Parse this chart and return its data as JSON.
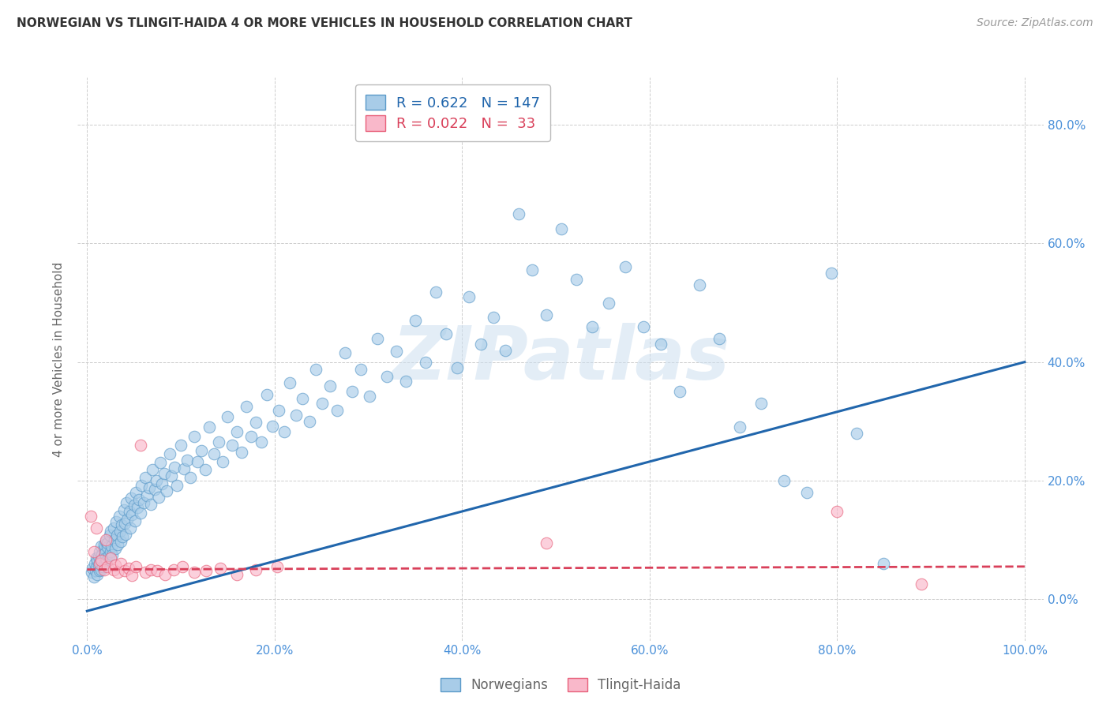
{
  "title": "NORWEGIAN VS TLINGIT-HAIDA 4 OR MORE VEHICLES IN HOUSEHOLD CORRELATION CHART",
  "source": "Source: ZipAtlas.com",
  "ylabel": "4 or more Vehicles in Household",
  "watermark": "ZIPatlas",
  "norwegian_R": 0.622,
  "norwegian_N": 147,
  "tlingit_R": 0.022,
  "tlingit_N": 33,
  "xlim": [
    -0.01,
    1.02
  ],
  "ylim": [
    -0.07,
    0.88
  ],
  "xticks": [
    0.0,
    0.2,
    0.4,
    0.6,
    0.8,
    1.0
  ],
  "yticks": [
    0.0,
    0.2,
    0.4,
    0.6,
    0.8
  ],
  "xticklabels": [
    "0.0%",
    "20.0%",
    "40.0%",
    "60.0%",
    "80.0%",
    "100.0%"
  ],
  "yticklabels_right": [
    "0.0%",
    "20.0%",
    "40.0%",
    "60.0%",
    "80.0%"
  ],
  "norwegian_color": "#a8cce8",
  "norwegian_edge": "#5b9ac9",
  "tlingit_color": "#f9b8ca",
  "tlingit_edge": "#e8607a",
  "trend_norwegian_color": "#2166ac",
  "trend_tlingit_color": "#d9405a",
  "legend_label_norwegian": "Norwegians",
  "legend_label_tlingit": "Tlingit-Haida",
  "title_color": "#333333",
  "source_color": "#999999",
  "axis_label_color": "#666666",
  "tick_color": "#4a90d9",
  "grid_color": "#c8c8c8",
  "nor_trend_x0": 0.0,
  "nor_trend_y0": -0.02,
  "nor_trend_x1": 1.0,
  "nor_trend_y1": 0.4,
  "tl_trend_x0": 0.0,
  "tl_trend_y0": 0.05,
  "tl_trend_x1": 1.0,
  "tl_trend_y1": 0.055,
  "norwegian_x": [
    0.005,
    0.006,
    0.007,
    0.008,
    0.009,
    0.01,
    0.01,
    0.011,
    0.011,
    0.012,
    0.012,
    0.013,
    0.013,
    0.014,
    0.015,
    0.015,
    0.016,
    0.016,
    0.017,
    0.018,
    0.018,
    0.019,
    0.019,
    0.02,
    0.02,
    0.021,
    0.022,
    0.022,
    0.023,
    0.024,
    0.025,
    0.025,
    0.026,
    0.027,
    0.028,
    0.029,
    0.03,
    0.031,
    0.032,
    0.033,
    0.034,
    0.035,
    0.036,
    0.037,
    0.038,
    0.039,
    0.04,
    0.041,
    0.042,
    0.043,
    0.045,
    0.046,
    0.047,
    0.048,
    0.05,
    0.051,
    0.052,
    0.054,
    0.055,
    0.057,
    0.058,
    0.06,
    0.062,
    0.064,
    0.066,
    0.068,
    0.07,
    0.072,
    0.074,
    0.076,
    0.078,
    0.08,
    0.082,
    0.085,
    0.088,
    0.09,
    0.093,
    0.096,
    0.1,
    0.103,
    0.107,
    0.11,
    0.114,
    0.118,
    0.122,
    0.126,
    0.13,
    0.135,
    0.14,
    0.145,
    0.15,
    0.155,
    0.16,
    0.165,
    0.17,
    0.175,
    0.18,
    0.186,
    0.192,
    0.198,
    0.204,
    0.21,
    0.216,
    0.223,
    0.23,
    0.237,
    0.244,
    0.251,
    0.259,
    0.267,
    0.275,
    0.283,
    0.292,
    0.301,
    0.31,
    0.32,
    0.33,
    0.34,
    0.35,
    0.361,
    0.372,
    0.383,
    0.395,
    0.407,
    0.42,
    0.433,
    0.446,
    0.46,
    0.475,
    0.49,
    0.506,
    0.522,
    0.539,
    0.556,
    0.574,
    0.593,
    0.612,
    0.632,
    0.653,
    0.674,
    0.696,
    0.719,
    0.743,
    0.768,
    0.794,
    0.821,
    0.849
  ],
  "norwegian_y": [
    0.045,
    0.052,
    0.038,
    0.06,
    0.048,
    0.055,
    0.07,
    0.042,
    0.065,
    0.058,
    0.072,
    0.048,
    0.08,
    0.063,
    0.05,
    0.09,
    0.068,
    0.075,
    0.055,
    0.085,
    0.092,
    0.06,
    0.078,
    0.07,
    0.098,
    0.065,
    0.088,
    0.095,
    0.073,
    0.108,
    0.08,
    0.115,
    0.09,
    0.075,
    0.12,
    0.1,
    0.085,
    0.13,
    0.108,
    0.092,
    0.14,
    0.115,
    0.098,
    0.125,
    0.105,
    0.15,
    0.128,
    0.11,
    0.162,
    0.135,
    0.148,
    0.12,
    0.17,
    0.142,
    0.158,
    0.132,
    0.18,
    0.155,
    0.168,
    0.145,
    0.192,
    0.162,
    0.205,
    0.175,
    0.188,
    0.16,
    0.218,
    0.185,
    0.2,
    0.172,
    0.23,
    0.195,
    0.212,
    0.182,
    0.245,
    0.208,
    0.222,
    0.192,
    0.26,
    0.22,
    0.235,
    0.205,
    0.275,
    0.232,
    0.25,
    0.218,
    0.29,
    0.245,
    0.265,
    0.232,
    0.308,
    0.26,
    0.282,
    0.248,
    0.325,
    0.275,
    0.298,
    0.265,
    0.345,
    0.292,
    0.318,
    0.282,
    0.365,
    0.31,
    0.338,
    0.3,
    0.388,
    0.33,
    0.36,
    0.318,
    0.415,
    0.35,
    0.388,
    0.342,
    0.44,
    0.375,
    0.418,
    0.368,
    0.47,
    0.4,
    0.518,
    0.448,
    0.39,
    0.51,
    0.43,
    0.475,
    0.42,
    0.65,
    0.555,
    0.48,
    0.625,
    0.54,
    0.46,
    0.5,
    0.56,
    0.46,
    0.43,
    0.35,
    0.53,
    0.44,
    0.29,
    0.33,
    0.2,
    0.18,
    0.55,
    0.28,
    0.06
  ],
  "tlingit_x": [
    0.004,
    0.007,
    0.01,
    0.013,
    0.015,
    0.018,
    0.02,
    0.022,
    0.025,
    0.028,
    0.03,
    0.033,
    0.036,
    0.04,
    0.044,
    0.048,
    0.052,
    0.057,
    0.062,
    0.068,
    0.075,
    0.083,
    0.092,
    0.102,
    0.114,
    0.127,
    0.142,
    0.16,
    0.18,
    0.203,
    0.49,
    0.8,
    0.89
  ],
  "tlingit_y": [
    0.14,
    0.08,
    0.12,
    0.06,
    0.065,
    0.05,
    0.1,
    0.055,
    0.07,
    0.05,
    0.058,
    0.045,
    0.06,
    0.048,
    0.052,
    0.04,
    0.055,
    0.26,
    0.045,
    0.05,
    0.048,
    0.042,
    0.05,
    0.055,
    0.045,
    0.048,
    0.052,
    0.042,
    0.05,
    0.055,
    0.095,
    0.148,
    0.025
  ]
}
